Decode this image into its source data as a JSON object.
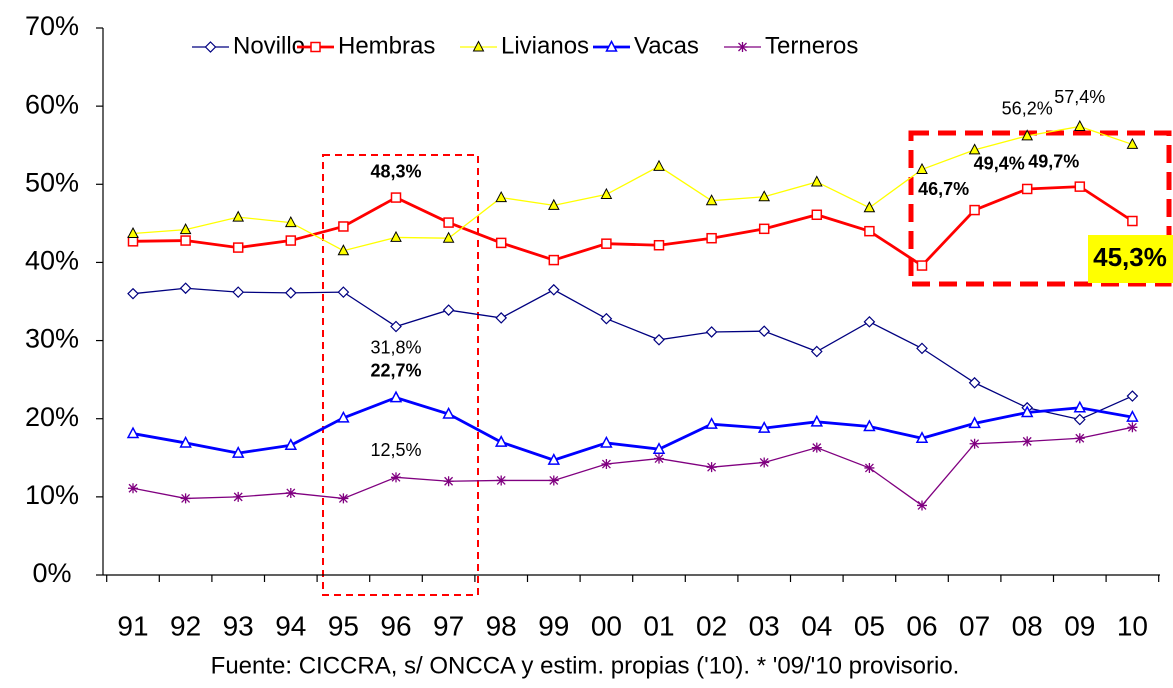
{
  "chart_data": {
    "type": "line",
    "categories": [
      "91",
      "92",
      "93",
      "94",
      "95",
      "96",
      "97",
      "98",
      "99",
      "00",
      "01",
      "02",
      "03",
      "04",
      "05",
      "06",
      "07",
      "08",
      "09",
      "10"
    ],
    "ylim": [
      0,
      70
    ],
    "yticks": [
      {
        "value": 0,
        "label": "0%"
      },
      {
        "value": 10,
        "label": "10%"
      },
      {
        "value": 20,
        "label": "20%"
      },
      {
        "value": 30,
        "label": "30%"
      },
      {
        "value": 40,
        "label": "40%"
      },
      {
        "value": 50,
        "label": "50%"
      },
      {
        "value": 60,
        "label": "60%"
      },
      {
        "value": 70,
        "label": "70%"
      }
    ],
    "grid": false,
    "legend": "top",
    "series": [
      {
        "name": "Novillo",
        "color": "#000080",
        "marker": "diamond",
        "values": [
          36.0,
          36.7,
          36.2,
          36.1,
          36.2,
          31.8,
          33.9,
          32.9,
          36.5,
          32.8,
          30.1,
          31.1,
          31.2,
          28.6,
          32.4,
          29.0,
          24.6,
          21.4,
          19.9,
          22.9
        ],
        "value_labels": [
          null,
          null,
          null,
          null,
          null,
          "31,8%",
          null,
          null,
          null,
          null,
          null,
          null,
          null,
          null,
          null,
          null,
          null,
          null,
          null,
          null
        ]
      },
      {
        "name": "Hembras",
        "color": "#ff0000",
        "marker": "square",
        "values": [
          42.7,
          42.8,
          41.9,
          42.8,
          44.6,
          48.3,
          45.1,
          42.5,
          40.3,
          42.4,
          42.2,
          43.1,
          44.3,
          46.1,
          44.0,
          39.6,
          46.7,
          49.4,
          49.7,
          45.3
        ],
        "value_labels": [
          null,
          null,
          null,
          null,
          null,
          "48,3%",
          null,
          null,
          null,
          null,
          null,
          null,
          null,
          null,
          null,
          null,
          "46,7%",
          "49,4%",
          "49,7%",
          "45,3%"
        ]
      },
      {
        "name": "Livianos",
        "color": "#ffff00",
        "marker": "triangle",
        "values": [
          43.7,
          44.2,
          45.8,
          45.1,
          41.5,
          43.2,
          43.1,
          48.3,
          47.3,
          48.7,
          52.3,
          47.9,
          48.4,
          50.3,
          47.0,
          51.9,
          54.4,
          56.2,
          57.4,
          55.1
        ],
        "value_labels": [
          null,
          null,
          null,
          null,
          null,
          null,
          null,
          null,
          null,
          null,
          null,
          null,
          null,
          null,
          null,
          null,
          null,
          "56,2%",
          "57,4%",
          null
        ]
      },
      {
        "name": "Vacas",
        "color": "#0000ff",
        "marker": "triangle-open",
        "values": [
          18.1,
          16.9,
          15.6,
          16.6,
          20.1,
          22.7,
          20.6,
          17.0,
          14.7,
          16.9,
          16.1,
          19.3,
          18.8,
          19.6,
          19.0,
          17.5,
          19.4,
          20.8,
          21.4,
          20.2
        ],
        "value_labels": [
          null,
          null,
          null,
          null,
          null,
          "22,7%",
          null,
          null,
          null,
          null,
          null,
          null,
          null,
          null,
          null,
          null,
          null,
          null,
          null,
          null
        ]
      },
      {
        "name": "Terneros",
        "color": "#800080",
        "marker": "asterisk",
        "values": [
          11.1,
          9.8,
          10.0,
          10.5,
          9.8,
          12.5,
          12.0,
          12.1,
          12.1,
          14.2,
          14.9,
          13.8,
          14.4,
          16.3,
          13.7,
          8.9,
          16.8,
          17.1,
          17.5,
          18.9
        ],
        "value_labels": [
          null,
          null,
          null,
          null,
          null,
          "12,5%",
          null,
          null,
          null,
          null,
          null,
          null,
          null,
          null,
          null,
          null,
          null,
          null,
          null,
          null
        ]
      }
    ],
    "source": "Fuente: CICCRA, s/ ONCCA y estim. propias ('10). * '09/'10 provisorio."
  }
}
